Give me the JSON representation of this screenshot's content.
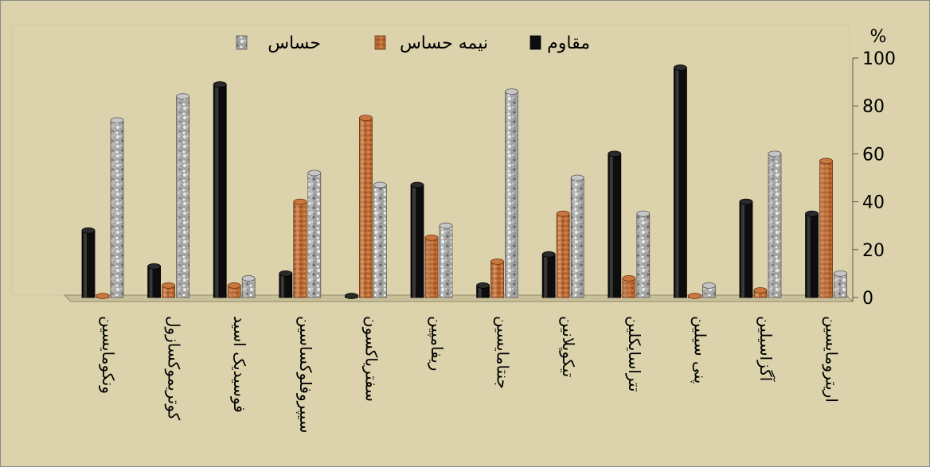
{
  "chart_data": {
    "type": "bar",
    "title": "",
    "xlabel": "",
    "ylabel": "",
    "unit_label": "%",
    "ylim": [
      0,
      100
    ],
    "yticks": [
      0,
      20,
      40,
      60,
      80,
      100
    ],
    "legend_position": "top",
    "categories": [
      "ونکومایسین",
      "کوتریموکسازول",
      "فوسیدیک اسید",
      "سیپروفلوکساسین",
      "سفتریاکسون",
      "ریفامپین",
      "جنتامایسین",
      "تیکوپلانین",
      "تتراسایکلین",
      "پنی سیلین",
      "آگزاسیلین",
      "اریترومایسین"
    ],
    "series": [
      {
        "name": "مقاوم",
        "color": "#0a0a0a",
        "values": [
          28,
          13,
          89,
          10,
          0,
          47,
          5,
          18,
          60,
          96,
          40,
          35
        ]
      },
      {
        "name": "نیمه حساس",
        "color": "#b8652e",
        "values": [
          0,
          5,
          5,
          40,
          75,
          25,
          15,
          35,
          8,
          0,
          3,
          57
        ]
      },
      {
        "name": "حساس",
        "color": "#a9a9a9",
        "values": [
          74,
          84,
          8,
          52,
          47,
          30,
          86,
          50,
          35,
          5,
          60,
          10
        ]
      }
    ]
  }
}
